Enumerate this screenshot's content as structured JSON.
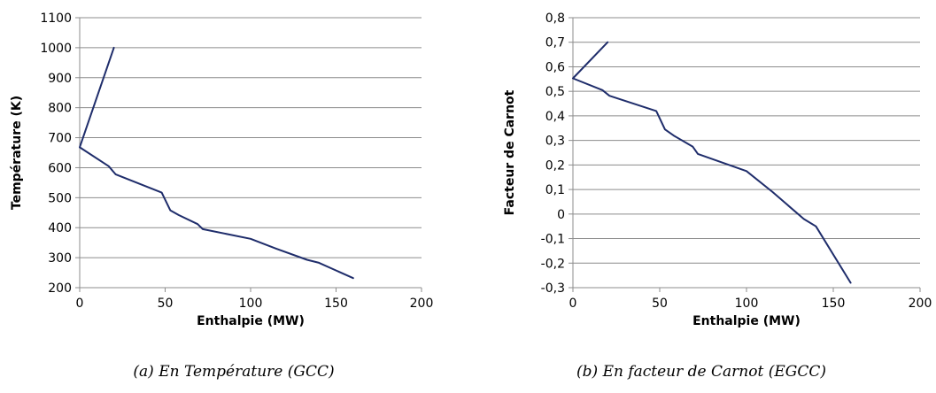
{
  "chart_data": [
    {
      "type": "line",
      "caption": "(a) En Température (GCC)",
      "xlabel": "Enthalpie (MW)",
      "ylabel": "Température (K)",
      "xlim": [
        0,
        200
      ],
      "ylim": [
        200,
        1100
      ],
      "xticks": [
        "0",
        "50",
        "100",
        "150",
        "200"
      ],
      "yticks": [
        "200",
        "300",
        "400",
        "500",
        "600",
        "700",
        "800",
        "900",
        "1000",
        "1100"
      ],
      "grid": "horizontal",
      "color": "#1f2d6b",
      "series": [
        {
          "x": [
            20,
            0,
            17,
            21,
            48,
            53,
            58,
            69,
            72,
            100,
            115,
            133,
            140,
            160
          ],
          "y": [
            1000,
            668,
            605,
            578,
            517,
            458,
            442,
            412,
            395,
            363,
            330,
            293,
            283,
            232
          ]
        }
      ]
    },
    {
      "type": "line",
      "caption": "(b) En facteur de Carnot (EGCC)",
      "xlabel": "Enthalpie (MW)",
      "ylabel": "Facteur de Carnot",
      "xlim": [
        0,
        200
      ],
      "ylim": [
        -0.3,
        0.8
      ],
      "xticks": [
        "0",
        "50",
        "100",
        "150",
        "200"
      ],
      "yticks": [
        "-0,3",
        "-0,2",
        "-0,1",
        "0",
        "0,1",
        "0,2",
        "0,3",
        "0,4",
        "0,5",
        "0,6",
        "0,7",
        "0,8"
      ],
      "grid": "horizontal",
      "color": "#1f2d6b",
      "series": [
        {
          "x": [
            20,
            0,
            17,
            21,
            48,
            53,
            58,
            69,
            72,
            100,
            115,
            133,
            140,
            160
          ],
          "y": [
            0.7,
            0.553,
            0.505,
            0.482,
            0.42,
            0.345,
            0.32,
            0.275,
            0.245,
            0.175,
            0.09,
            -0.02,
            -0.05,
            -0.28
          ]
        }
      ]
    }
  ]
}
